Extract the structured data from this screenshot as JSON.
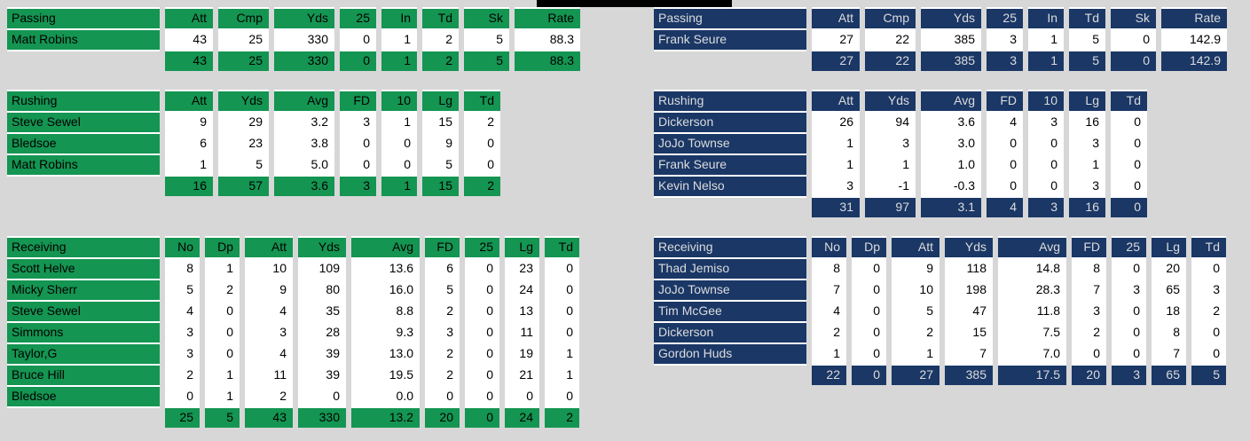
{
  "window": {
    "background_color": "#D7D7D7",
    "title_bar_color": "#000000"
  },
  "teams": [
    {
      "side": "left",
      "theme_color": "#149552",
      "text_color": "#000000",
      "tables": {
        "passing": {
          "label": "Passing",
          "columns": [
            "Att",
            "Cmp",
            "Yds",
            "25",
            "In",
            "Td",
            "Sk",
            "Rate"
          ],
          "players": [
            {
              "name": "Matt Robins",
              "values": [
                "43",
                "25",
                "330",
                "0",
                "1",
                "2",
                "5",
                "88.3"
              ]
            }
          ],
          "totals": [
            "43",
            "25",
            "330",
            "0",
            "1",
            "2",
            "5",
            "88.3"
          ]
        },
        "rushing": {
          "label": "Rushing",
          "columns": [
            "Att",
            "Yds",
            "Avg",
            "FD",
            "10",
            "Lg",
            "Td"
          ],
          "players": [
            {
              "name": "Steve Sewel",
              "values": [
                "9",
                "29",
                "3.2",
                "3",
                "1",
                "15",
                "2"
              ]
            },
            {
              "name": "Bledsoe",
              "values": [
                "6",
                "23",
                "3.8",
                "0",
                "0",
                "9",
                "0"
              ]
            },
            {
              "name": "Matt Robins",
              "values": [
                "1",
                "5",
                "5.0",
                "0",
                "0",
                "5",
                "0"
              ]
            }
          ],
          "totals": [
            "16",
            "57",
            "3.6",
            "3",
            "1",
            "15",
            "2"
          ]
        },
        "receiving": {
          "label": "Receiving",
          "columns": [
            "No",
            "Dp",
            "Att",
            "Yds",
            "Avg",
            "FD",
            "25",
            "Lg",
            "Td"
          ],
          "players": [
            {
              "name": "Scott Helve",
              "values": [
                "8",
                "1",
                "10",
                "109",
                "13.6",
                "6",
                "0",
                "23",
                "0"
              ]
            },
            {
              "name": "Micky Sherr",
              "values": [
                "5",
                "2",
                "9",
                "80",
                "16.0",
                "5",
                "0",
                "24",
                "0"
              ]
            },
            {
              "name": "Steve Sewel",
              "values": [
                "4",
                "0",
                "4",
                "35",
                "8.8",
                "2",
                "0",
                "13",
                "0"
              ]
            },
            {
              "name": "Simmons",
              "values": [
                "3",
                "0",
                "3",
                "28",
                "9.3",
                "3",
                "0",
                "11",
                "0"
              ]
            },
            {
              "name": "Taylor,G",
              "values": [
                "3",
                "0",
                "4",
                "39",
                "13.0",
                "2",
                "0",
                "19",
                "1"
              ]
            },
            {
              "name": "Bruce Hill",
              "values": [
                "2",
                "1",
                "11",
                "39",
                "19.5",
                "2",
                "0",
                "21",
                "1"
              ]
            },
            {
              "name": "Bledsoe",
              "values": [
                "0",
                "1",
                "2",
                "0",
                "0.0",
                "0",
                "0",
                "0",
                "0"
              ]
            }
          ],
          "totals": [
            "25",
            "5",
            "43",
            "330",
            "13.2",
            "20",
            "0",
            "24",
            "2"
          ]
        }
      }
    },
    {
      "side": "right",
      "theme_color": "#1A3766",
      "text_color": "#DCDCDC",
      "tables": {
        "passing": {
          "label": "Passing",
          "columns": [
            "Att",
            "Cmp",
            "Yds",
            "25",
            "In",
            "Td",
            "Sk",
            "Rate"
          ],
          "players": [
            {
              "name": "Frank Seure",
              "values": [
                "27",
                "22",
                "385",
                "3",
                "1",
                "5",
                "0",
                "142.9"
              ]
            }
          ],
          "totals": [
            "27",
            "22",
            "385",
            "3",
            "1",
            "5",
            "0",
            "142.9"
          ]
        },
        "rushing": {
          "label": "Rushing",
          "columns": [
            "Att",
            "Yds",
            "Avg",
            "FD",
            "10",
            "Lg",
            "Td"
          ],
          "players": [
            {
              "name": "Dickerson",
              "values": [
                "26",
                "94",
                "3.6",
                "4",
                "3",
                "16",
                "0"
              ]
            },
            {
              "name": "JoJo Townse",
              "values": [
                "1",
                "3",
                "3.0",
                "0",
                "0",
                "3",
                "0"
              ]
            },
            {
              "name": "Frank Seure",
              "values": [
                "1",
                "1",
                "1.0",
                "0",
                "0",
                "1",
                "0"
              ]
            },
            {
              "name": "Kevin Nelso",
              "values": [
                "3",
                "-1",
                "-0.3",
                "0",
                "0",
                "3",
                "0"
              ]
            }
          ],
          "totals": [
            "31",
            "97",
            "3.1",
            "4",
            "3",
            "16",
            "0"
          ]
        },
        "receiving": {
          "label": "Receiving",
          "columns": [
            "No",
            "Dp",
            "Att",
            "Yds",
            "Avg",
            "FD",
            "25",
            "Lg",
            "Td"
          ],
          "players": [
            {
              "name": "Thad Jemiso",
              "values": [
                "8",
                "0",
                "9",
                "118",
                "14.8",
                "8",
                "0",
                "20",
                "0"
              ]
            },
            {
              "name": "JoJo Townse",
              "values": [
                "7",
                "0",
                "10",
                "198",
                "28.3",
                "7",
                "3",
                "65",
                "3"
              ]
            },
            {
              "name": "Tim McGee",
              "values": [
                "4",
                "0",
                "5",
                "47",
                "11.8",
                "3",
                "0",
                "18",
                "2"
              ]
            },
            {
              "name": "Dickerson",
              "values": [
                "2",
                "0",
                "2",
                "15",
                "7.5",
                "2",
                "0",
                "8",
                "0"
              ]
            },
            {
              "name": "Gordon Huds",
              "values": [
                "1",
                "0",
                "1",
                "7",
                "7.0",
                "0",
                "0",
                "7",
                "0"
              ]
            }
          ],
          "totals": [
            "22",
            "0",
            "27",
            "385",
            "17.5",
            "20",
            "3",
            "65",
            "5"
          ]
        }
      }
    }
  ]
}
